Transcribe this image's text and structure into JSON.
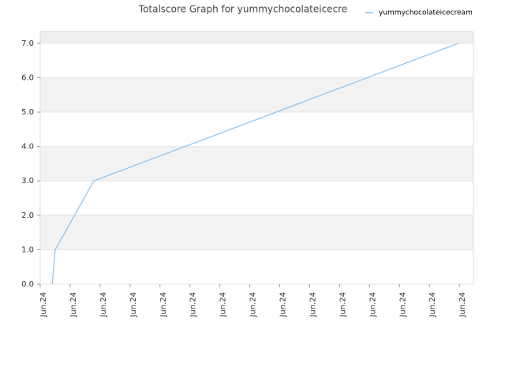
{
  "chart_data": {
    "type": "line",
    "title": "Totalscore Graph for yummychocolateicecre",
    "x": [
      0.4,
      0.5,
      1.79,
      13.97
    ],
    "series": [
      {
        "name": "yummychocolateicecream",
        "color": "#88c0f0",
        "values": [
          0,
          1,
          3,
          7
        ]
      }
    ],
    "xlim": [
      0,
      14.47
    ],
    "xticks": [
      {
        "value": 0,
        "label": "Jun.24"
      },
      {
        "value": 1,
        "label": "Jun.24"
      },
      {
        "value": 2,
        "label": "Jun.24"
      },
      {
        "value": 3,
        "label": "Jun.24"
      },
      {
        "value": 4,
        "label": "Jun.24"
      },
      {
        "value": 5,
        "label": "Jun.24"
      },
      {
        "value": 6,
        "label": "Jun.24"
      },
      {
        "value": 7,
        "label": "Jun.24"
      },
      {
        "value": 8,
        "label": "Jun.24"
      },
      {
        "value": 9,
        "label": "Jun.24"
      },
      {
        "value": 10,
        "label": "Jun.24"
      },
      {
        "value": 11,
        "label": "Jun.24"
      },
      {
        "value": 12,
        "label": "Jun.24"
      },
      {
        "value": 13,
        "label": "Jun.24"
      },
      {
        "value": 14,
        "label": "Jun.24"
      }
    ],
    "ylim": [
      0,
      7.34
    ],
    "yticks": [
      {
        "value": 0,
        "label": "0.0"
      },
      {
        "value": 1,
        "label": "1.0"
      },
      {
        "value": 2,
        "label": "2.0"
      },
      {
        "value": 3,
        "label": "3.0"
      },
      {
        "value": 4,
        "label": "4.0"
      },
      {
        "value": 5,
        "label": "5.0"
      },
      {
        "value": 6,
        "label": "6.0"
      },
      {
        "value": 7,
        "label": "7.0"
      }
    ],
    "grid": true,
    "legend": "top-right"
  }
}
